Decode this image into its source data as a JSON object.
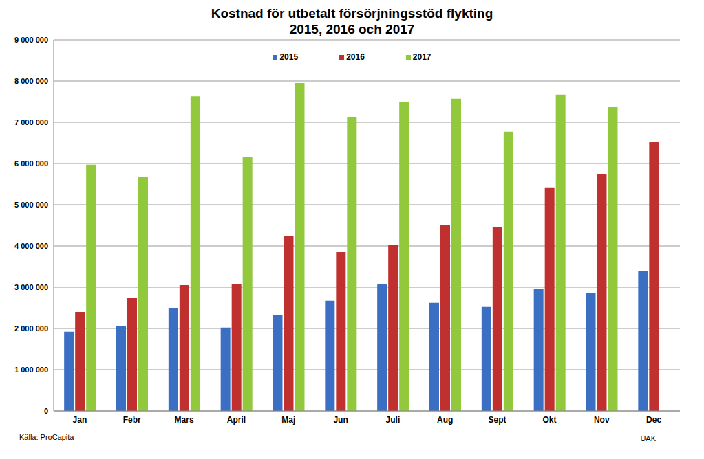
{
  "chart_data": {
    "type": "bar",
    "title": "Kostnad för utbetalt försörjningsstöd flykting",
    "subtitle": "2015, 2016 och 2017",
    "categories": [
      "Jan",
      "Febr",
      "Mars",
      "April",
      "Maj",
      "Jun",
      "Juli",
      "Aug",
      "Sept",
      "Okt",
      "Nov",
      "Dec"
    ],
    "series": [
      {
        "name": "2015",
        "color": "#3a6fc4",
        "values": [
          1920000,
          2050000,
          2500000,
          2020000,
          2320000,
          2670000,
          3080000,
          2620000,
          2520000,
          2950000,
          2850000,
          3400000
        ]
      },
      {
        "name": "2016",
        "color": "#c0302e",
        "values": [
          2400000,
          2750000,
          3050000,
          3080000,
          4250000,
          3850000,
          4020000,
          4500000,
          4450000,
          5420000,
          5750000,
          6520000
        ]
      },
      {
        "name": "2017",
        "color": "#92c83c",
        "values": [
          5970000,
          5670000,
          7630000,
          6150000,
          7950000,
          7130000,
          7500000,
          7570000,
          6770000,
          7670000,
          7380000,
          null
        ]
      }
    ],
    "ylim": [
      0,
      9000000
    ],
    "yticks": [
      0,
      {
        "value": 1000000,
        "label": "1 000 000"
      },
      {
        "value": 2000000,
        "label": "2 000 000"
      },
      {
        "value": 3000000,
        "label": "3 000 000"
      },
      {
        "value": 4000000,
        "label": "4 000 000"
      },
      {
        "value": 5000000,
        "label": "5 000 000"
      },
      {
        "value": 6000000,
        "label": "6 000 000"
      },
      {
        "value": 7000000,
        "label": "7 000 000"
      },
      {
        "value": 8000000,
        "label": "8 000 000"
      },
      {
        "value": 9000000,
        "label": "9 000 000"
      }
    ],
    "grid": true,
    "legend": "top",
    "annotations": [
      "Källa: ProCapita",
      "UAK"
    ]
  }
}
